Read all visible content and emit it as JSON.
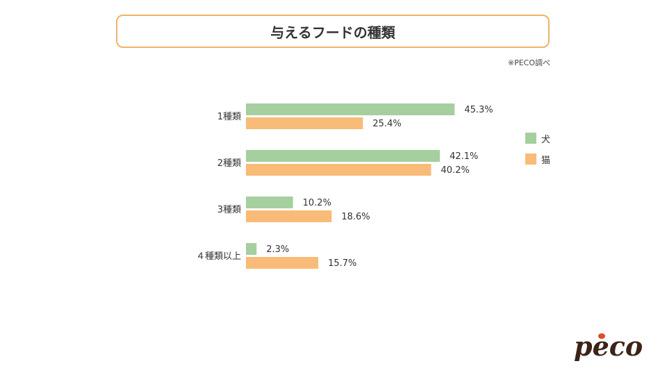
{
  "title": "与えるフードの種類",
  "source_note": "※PECO調べ",
  "colors": {
    "dog": "#a5cf9e",
    "cat": "#f8bb78",
    "frame": "#f2b06a",
    "logo_dark": "#3b2418",
    "logo_red": "#e04b28"
  },
  "logo": {
    "text": "peco",
    "icon": "peco-logo"
  },
  "chart_data": {
    "type": "bar",
    "orientation": "horizontal",
    "categories": [
      "1種類",
      "2種類",
      "3種類",
      "４種類以上"
    ],
    "series": [
      {
        "name": "犬",
        "values": [
          45.3,
          42.1,
          10.2,
          2.3
        ],
        "labels": [
          "45.3%",
          "42.1%",
          "10.2%",
          "2.3%"
        ]
      },
      {
        "name": "猫",
        "values": [
          25.4,
          40.2,
          18.6,
          15.7
        ],
        "labels": [
          "25.4%",
          "40.2%",
          "18.6%",
          "15.7%"
        ]
      }
    ],
    "unit": "%",
    "xlim": [
      0,
      100
    ],
    "legend_position": "right",
    "grid": false
  }
}
